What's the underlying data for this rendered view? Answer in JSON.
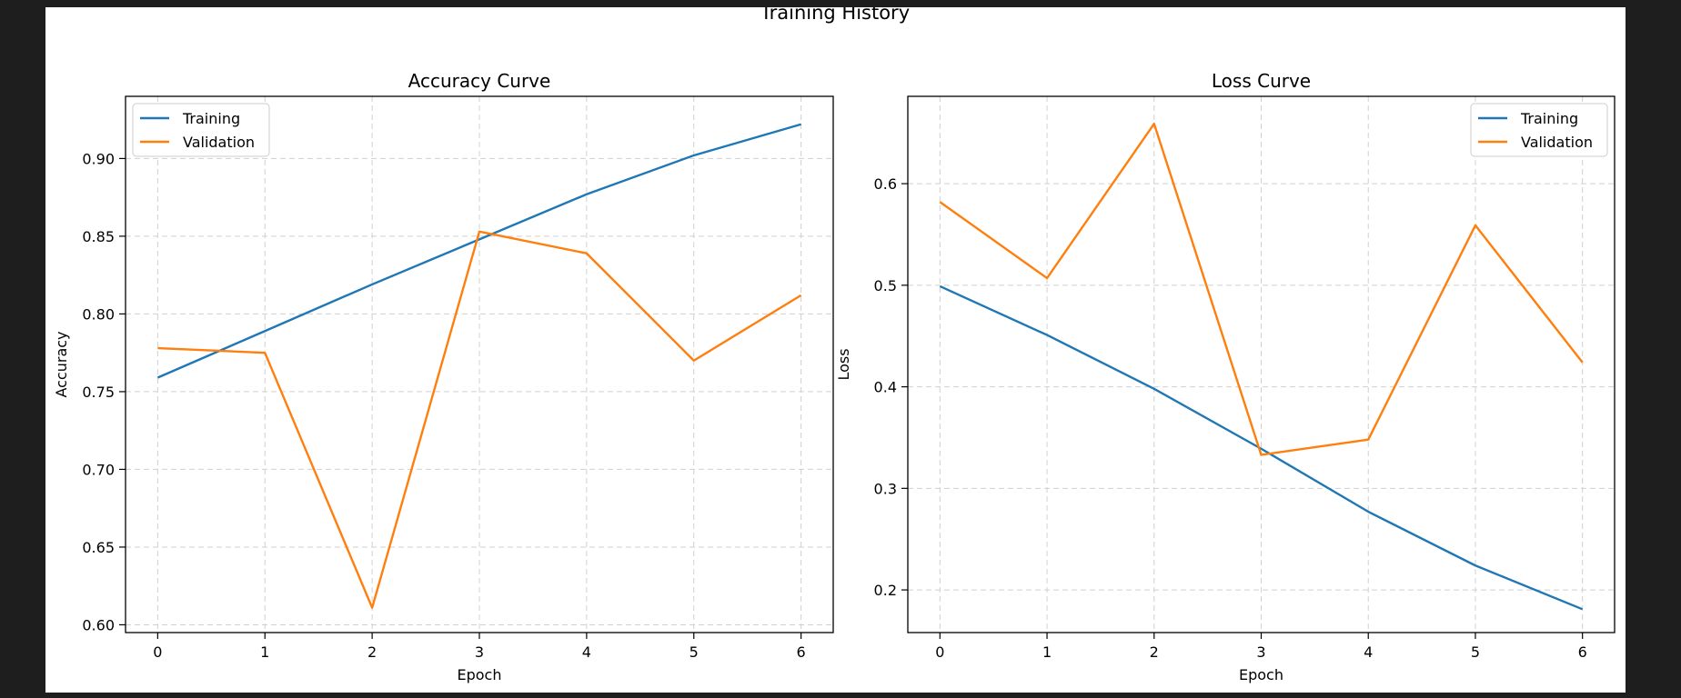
{
  "figure": {
    "title": "Training History"
  },
  "colors": {
    "training": "#1f77b4",
    "validation": "#ff7f0e",
    "grid": "#d0d0d0"
  },
  "chart_data": [
    {
      "type": "line",
      "title": "Accuracy Curve",
      "xlabel": "Epoch",
      "ylabel": "Accuracy",
      "x": [
        0,
        1,
        2,
        3,
        4,
        5,
        6
      ],
      "xlim": [
        -0.3,
        6.3
      ],
      "ylim": [
        0.595,
        0.94
      ],
      "xticks": [
        0,
        1,
        2,
        3,
        4,
        5,
        6
      ],
      "yticks": [
        0.6,
        0.65,
        0.7,
        0.75,
        0.8,
        0.85,
        0.9
      ],
      "ytick_labels": [
        "0.60",
        "0.65",
        "0.70",
        "0.75",
        "0.80",
        "0.85",
        "0.90"
      ],
      "grid": true,
      "legend": "top-left",
      "series": [
        {
          "name": "Training",
          "values": [
            0.759,
            0.789,
            0.819,
            0.848,
            0.877,
            0.902,
            0.922
          ]
        },
        {
          "name": "Validation",
          "values": [
            0.778,
            0.775,
            0.611,
            0.853,
            0.839,
            0.77,
            0.812
          ]
        }
      ]
    },
    {
      "type": "line",
      "title": "Loss Curve",
      "xlabel": "Epoch",
      "ylabel": "Loss",
      "x": [
        0,
        1,
        2,
        3,
        4,
        5,
        6
      ],
      "xlim": [
        -0.3,
        6.3
      ],
      "ylim": [
        0.158,
        0.686
      ],
      "xticks": [
        0,
        1,
        2,
        3,
        4,
        5,
        6
      ],
      "yticks": [
        0.2,
        0.3,
        0.4,
        0.5,
        0.6
      ],
      "ytick_labels": [
        "0.2",
        "0.3",
        "0.4",
        "0.5",
        "0.6"
      ],
      "grid": true,
      "legend": "top-right",
      "series": [
        {
          "name": "Training",
          "values": [
            0.499,
            0.451,
            0.398,
            0.339,
            0.277,
            0.224,
            0.181
          ]
        },
        {
          "name": "Validation",
          "values": [
            0.582,
            0.507,
            0.659,
            0.333,
            0.348,
            0.559,
            0.424
          ]
        }
      ]
    }
  ]
}
